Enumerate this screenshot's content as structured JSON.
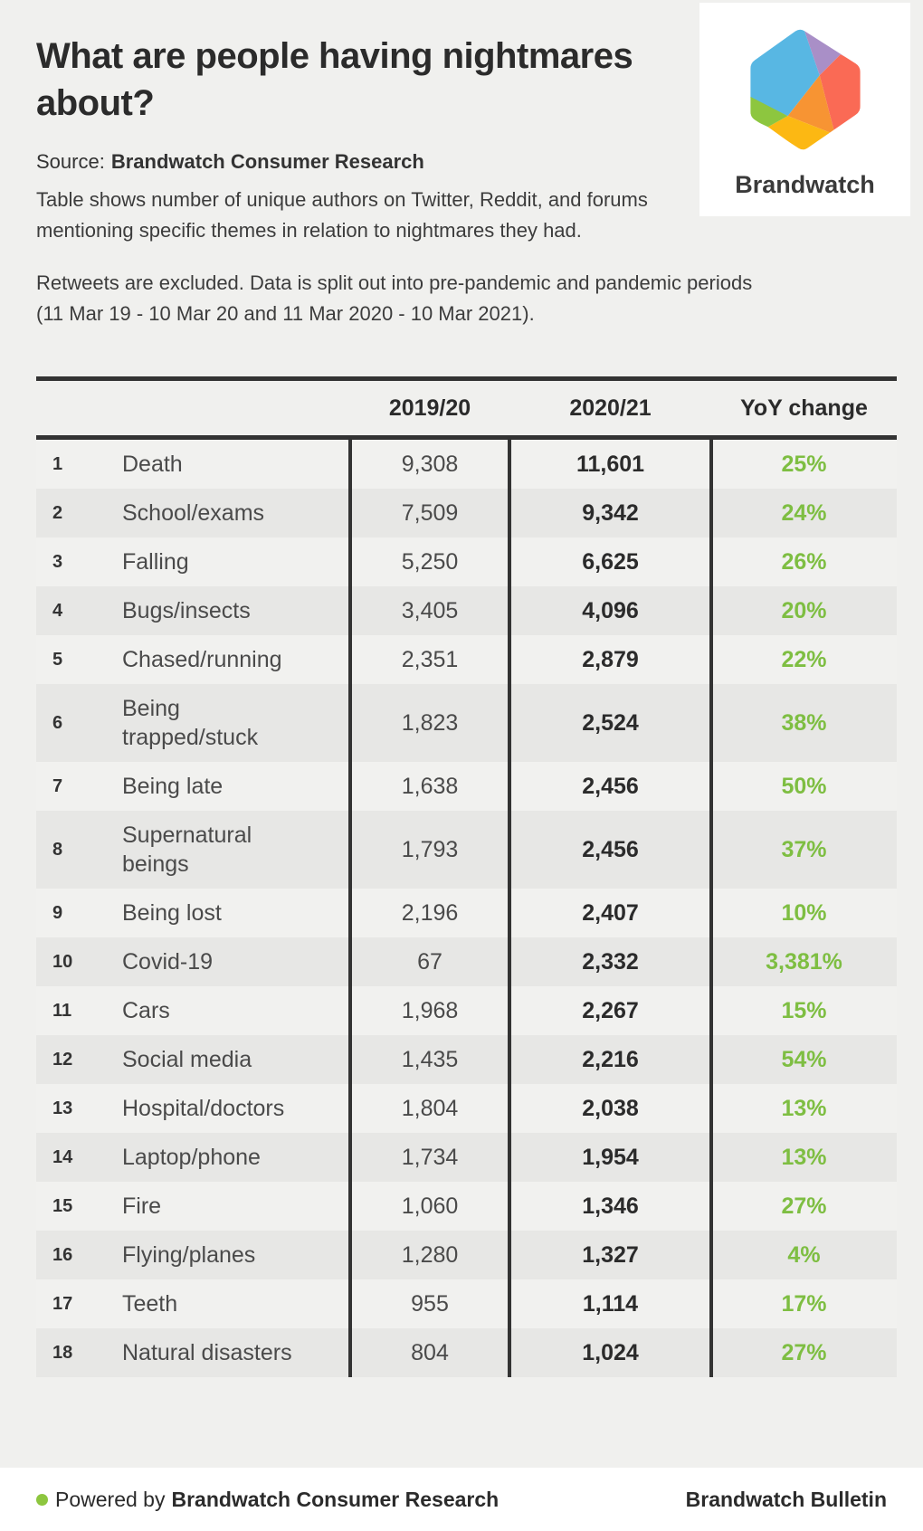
{
  "page": {
    "title": "What are people having nightmares about?",
    "source_prefix": "Source:",
    "source_name": "Brandwatch Consumer Research",
    "description": "Table shows number of unique authors on Twitter, Reddit, and forums mentioning specific themes in relation to nightmares they had.",
    "note": "Retweets are excluded. Data is split out into pre-pandemic and pandemic periods (11 Mar 19 - 10 Mar 20 and 11 Mar 2020 - 10 Mar 2021)."
  },
  "logo": {
    "brand": "Brandwatch",
    "colors": {
      "blue": "#58b7e3",
      "purple": "#a98fc7",
      "red": "#fa6a55",
      "orange": "#f79433",
      "yellow": "#fcb813",
      "green": "#8dc63f"
    }
  },
  "chart_data": {
    "type": "table",
    "title": "What are people having nightmares about?",
    "columns": [
      "2019/20",
      "2020/21",
      "YoY change"
    ],
    "rows": [
      {
        "rank": "1",
        "theme": "Death",
        "prev": "9,308",
        "curr": "11,601",
        "yoy": "25%"
      },
      {
        "rank": "2",
        "theme": "School/exams",
        "prev": "7,509",
        "curr": "9,342",
        "yoy": "24%"
      },
      {
        "rank": "3",
        "theme": "Falling",
        "prev": "5,250",
        "curr": "6,625",
        "yoy": "26%"
      },
      {
        "rank": "4",
        "theme": "Bugs/insects",
        "prev": "3,405",
        "curr": "4,096",
        "yoy": "20%"
      },
      {
        "rank": "5",
        "theme": "Chased/running",
        "prev": "2,351",
        "curr": "2,879",
        "yoy": "22%"
      },
      {
        "rank": "6",
        "theme": "Being trapped/stuck",
        "prev": "1,823",
        "curr": "2,524",
        "yoy": "38%"
      },
      {
        "rank": "7",
        "theme": "Being late",
        "prev": "1,638",
        "curr": "2,456",
        "yoy": "50%"
      },
      {
        "rank": "8",
        "theme": "Supernatural beings",
        "prev": "1,793",
        "curr": "2,456",
        "yoy": "37%"
      },
      {
        "rank": "9",
        "theme": "Being lost",
        "prev": "2,196",
        "curr": "2,407",
        "yoy": "10%"
      },
      {
        "rank": "10",
        "theme": "Covid-19",
        "prev": "67",
        "curr": "2,332",
        "yoy": "3,381%"
      },
      {
        "rank": "11",
        "theme": "Cars",
        "prev": "1,968",
        "curr": "2,267",
        "yoy": "15%"
      },
      {
        "rank": "12",
        "theme": "Social media",
        "prev": "1,435",
        "curr": "2,216",
        "yoy": "54%"
      },
      {
        "rank": "13",
        "theme": "Hospital/doctors",
        "prev": "1,804",
        "curr": "2,038",
        "yoy": "13%"
      },
      {
        "rank": "14",
        "theme": "Laptop/phone",
        "prev": "1,734",
        "curr": "1,954",
        "yoy": "13%"
      },
      {
        "rank": "15",
        "theme": "Fire",
        "prev": "1,060",
        "curr": "1,346",
        "yoy": "27%"
      },
      {
        "rank": "16",
        "theme": "Flying/planes",
        "prev": "1,280",
        "curr": "1,327",
        "yoy": "4%"
      },
      {
        "rank": "17",
        "theme": "Teeth",
        "prev": "955",
        "curr": "1,114",
        "yoy": "17%"
      },
      {
        "rank": "18",
        "theme": "Natural disasters",
        "prev": "804",
        "curr": "1,024",
        "yoy": "27%"
      }
    ]
  },
  "footer": {
    "powered_prefix": "Powered by",
    "powered_name": "Brandwatch Consumer Research",
    "right": "Brandwatch Bulletin"
  },
  "colors": {
    "accent_green": "#7ebe42",
    "dot_green": "#8dc63f",
    "background": "#f0f0ee",
    "row_stripe": "#e7e7e5",
    "table_line": "#333333"
  }
}
